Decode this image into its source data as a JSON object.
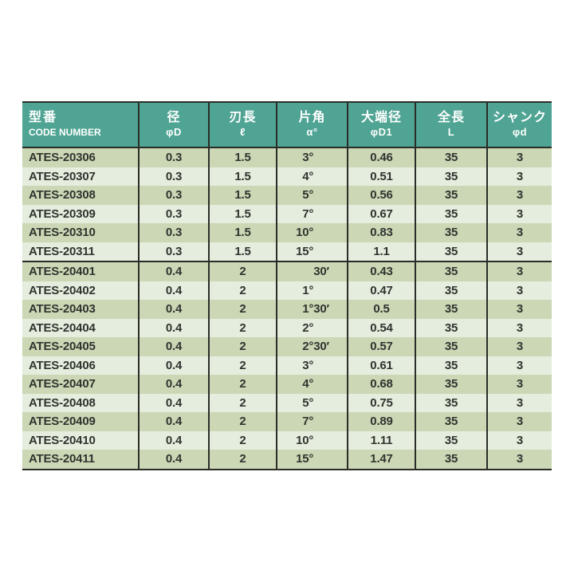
{
  "colors": {
    "page_bg": "#FFFFFF",
    "header_bg": "#4FA493",
    "header_text": "#FFFFFF",
    "row_dark": "#CBD7B5",
    "row_light": "#E5EDDE",
    "grid_line": "#2A2D28",
    "cell_text": "#30342F"
  },
  "table": {
    "header": {
      "columns": [
        {
          "jp": "型番",
          "sub": "CODE NUMBER"
        },
        {
          "jp": "径",
          "sub": "φD"
        },
        {
          "jp": "刃長",
          "sub": "ℓ"
        },
        {
          "jp": "片角",
          "sub": "α°"
        },
        {
          "jp": "大端径",
          "sub": "φD1"
        },
        {
          "jp": "全長",
          "sub": "L"
        },
        {
          "jp": "シャンク",
          "sub": "φd"
        }
      ]
    },
    "rows": [
      {
        "code": "ATES-20306",
        "dia": "0.3",
        "flute": "1.5",
        "deg": "3°",
        "min": "",
        "d1": "0.46",
        "len": "35",
        "shank": "3",
        "block": 1
      },
      {
        "code": "ATES-20307",
        "dia": "0.3",
        "flute": "1.5",
        "deg": "4°",
        "min": "",
        "d1": "0.51",
        "len": "35",
        "shank": "3",
        "block": 1
      },
      {
        "code": "ATES-20308",
        "dia": "0.3",
        "flute": "1.5",
        "deg": "5°",
        "min": "",
        "d1": "0.56",
        "len": "35",
        "shank": "3",
        "block": 1
      },
      {
        "code": "ATES-20309",
        "dia": "0.3",
        "flute": "1.5",
        "deg": "7°",
        "min": "",
        "d1": "0.67",
        "len": "35",
        "shank": "3",
        "block": 1
      },
      {
        "code": "ATES-20310",
        "dia": "0.3",
        "flute": "1.5",
        "deg": "10°",
        "min": "",
        "d1": "0.83",
        "len": "35",
        "shank": "3",
        "block": 1
      },
      {
        "code": "ATES-20311",
        "dia": "0.3",
        "flute": "1.5",
        "deg": "15°",
        "min": "",
        "d1": "1.1",
        "len": "35",
        "shank": "3",
        "block": 1
      },
      {
        "code": "ATES-20401",
        "dia": "0.4",
        "flute": "2",
        "deg": "",
        "min": "30′",
        "d1": "0.43",
        "len": "35",
        "shank": "3",
        "block": 2
      },
      {
        "code": "ATES-20402",
        "dia": "0.4",
        "flute": "2",
        "deg": "1°",
        "min": "",
        "d1": "0.47",
        "len": "35",
        "shank": "3",
        "block": 2
      },
      {
        "code": "ATES-20403",
        "dia": "0.4",
        "flute": "2",
        "deg": "1°",
        "min": "30′",
        "d1": "0.5",
        "len": "35",
        "shank": "3",
        "block": 2
      },
      {
        "code": "ATES-20404",
        "dia": "0.4",
        "flute": "2",
        "deg": "2°",
        "min": "",
        "d1": "0.54",
        "len": "35",
        "shank": "3",
        "block": 2
      },
      {
        "code": "ATES-20405",
        "dia": "0.4",
        "flute": "2",
        "deg": "2°",
        "min": "30′",
        "d1": "0.57",
        "len": "35",
        "shank": "3",
        "block": 2
      },
      {
        "code": "ATES-20406",
        "dia": "0.4",
        "flute": "2",
        "deg": "3°",
        "min": "",
        "d1": "0.61",
        "len": "35",
        "shank": "3",
        "block": 2
      },
      {
        "code": "ATES-20407",
        "dia": "0.4",
        "flute": "2",
        "deg": "4°",
        "min": "",
        "d1": "0.68",
        "len": "35",
        "shank": "3",
        "block": 2
      },
      {
        "code": "ATES-20408",
        "dia": "0.4",
        "flute": "2",
        "deg": "5°",
        "min": "",
        "d1": "0.75",
        "len": "35",
        "shank": "3",
        "block": 2
      },
      {
        "code": "ATES-20409",
        "dia": "0.4",
        "flute": "2",
        "deg": "7°",
        "min": "",
        "d1": "0.89",
        "len": "35",
        "shank": "3",
        "block": 2
      },
      {
        "code": "ATES-20410",
        "dia": "0.4",
        "flute": "2",
        "deg": "10°",
        "min": "",
        "d1": "1.11",
        "len": "35",
        "shank": "3",
        "block": 2
      },
      {
        "code": "ATES-20411",
        "dia": "0.4",
        "flute": "2",
        "deg": "15°",
        "min": "",
        "d1": "1.47",
        "len": "35",
        "shank": "3",
        "block": 2
      }
    ]
  }
}
